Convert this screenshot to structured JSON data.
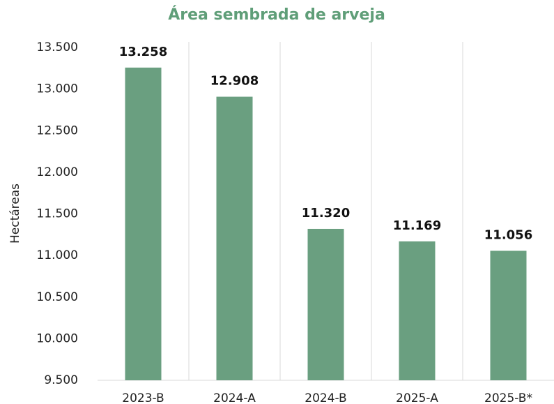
{
  "chart_data": {
    "type": "bar",
    "title": "Área sembrada de arveja",
    "ylabel": "Hectáreas",
    "categories": [
      "2023-B",
      "2024-A",
      "2024-B",
      "2025-A",
      "2025-B*"
    ],
    "values": [
      13258,
      12908,
      11320,
      11169,
      11056
    ],
    "value_labels": [
      "13.258",
      "12.908",
      "11.320",
      "11.169",
      "11.056"
    ],
    "color": "#6a9f80",
    "ylim": [
      9500,
      13500
    ],
    "yticks": [
      {
        "value": 9500,
        "label": "9.500"
      },
      {
        "value": 10000,
        "label": "10.000"
      },
      {
        "value": 10500,
        "label": "10.500"
      },
      {
        "value": 11000,
        "label": "11.000"
      },
      {
        "value": 11500,
        "label": "11.500"
      },
      {
        "value": 12000,
        "label": "12.000"
      },
      {
        "value": 12500,
        "label": "12.500"
      },
      {
        "value": 13000,
        "label": "13.000"
      },
      {
        "value": 13500,
        "label": "13.500"
      }
    ],
    "grid": false
  }
}
